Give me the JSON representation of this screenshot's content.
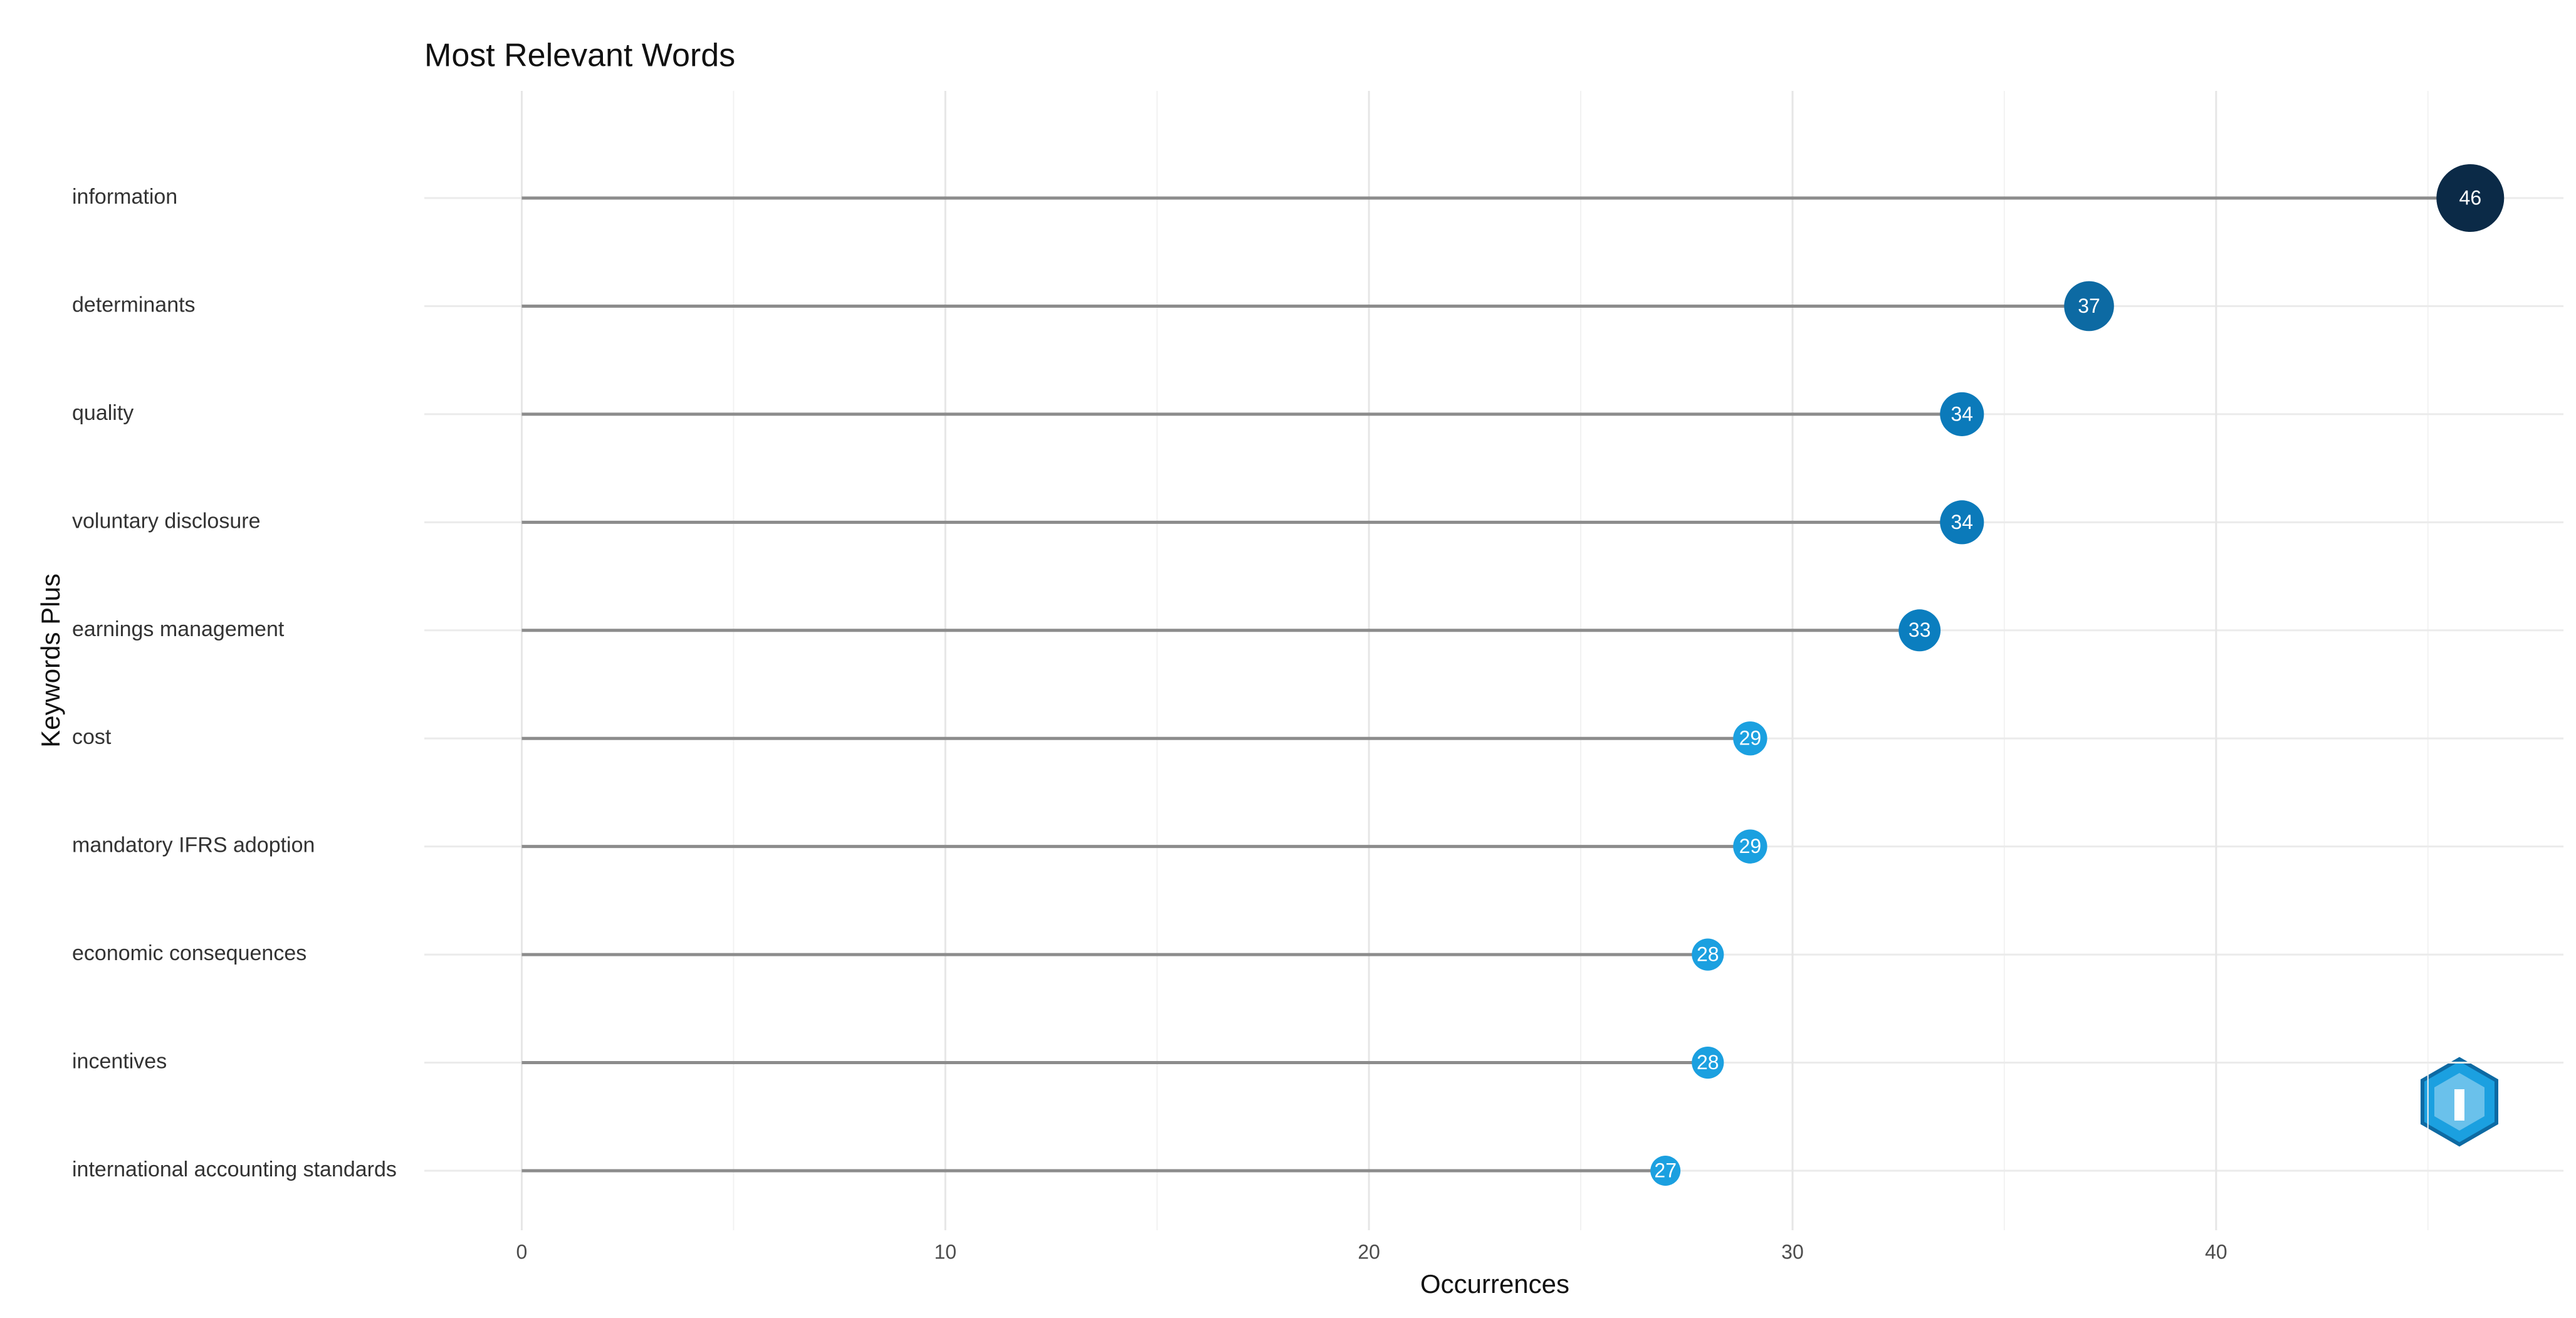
{
  "chart_data": {
    "type": "lollipop",
    "title": "Most Relevant Words",
    "x_label": "Occurrences",
    "y_label": "Keywords Plus",
    "categories": [
      "information",
      "determinants",
      "quality",
      "voluntary disclosure",
      "earnings management",
      "cost",
      "mandatory IFRS adoption",
      "economic consequences",
      "incentives",
      "international accounting standards"
    ],
    "values": [
      46,
      37,
      34,
      34,
      33,
      29,
      29,
      28,
      28,
      27
    ],
    "colors": [
      "#0b2a47",
      "#0d6aa3",
      "#0b7aba",
      "#0b7aba",
      "#0b7ebf",
      "#1ba0e0",
      "#1ba0e0",
      "#1ba0e0",
      "#1ba0e0",
      "#1ba0e0"
    ],
    "xlim": [
      -2.3,
      48.2
    ],
    "xticks": [
      0,
      10,
      20,
      30,
      40
    ],
    "minor_xticks": [
      5,
      15,
      25,
      35,
      45
    ],
    "grid": true
  }
}
